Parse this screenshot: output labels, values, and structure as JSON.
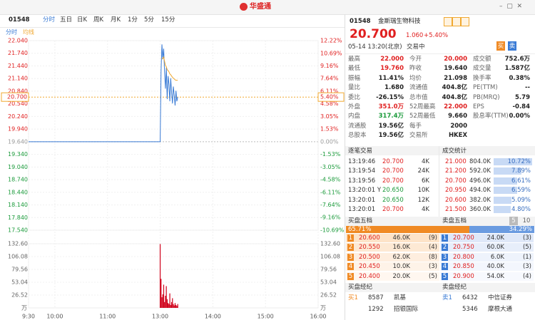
{
  "header": {
    "logo": "华盛通"
  },
  "toolbar": {
    "code": "01548",
    "tabs": [
      "分时",
      "五日",
      "日K",
      "周K",
      "月K",
      "1分",
      "5分",
      "15分"
    ]
  },
  "chart_data": {
    "type": "line",
    "x": [
      0,
      150,
      151,
      152,
      153,
      154,
      155,
      156,
      157,
      158,
      159,
      160,
      161,
      162,
      163,
      164,
      165,
      166,
      167,
      168,
      169,
      170
    ],
    "series": [
      {
        "name": "分时",
        "color": "#3a7bd5",
        "values": [
          19.64,
          19.64,
          21.3,
          21.95,
          21.6,
          21.85,
          21.3,
          20.9,
          21.4,
          20.65,
          21.2,
          21.0,
          20.6,
          21.15,
          20.8,
          20.55,
          20.95,
          20.75,
          20.5,
          20.85,
          20.6,
          20.7
        ]
      },
      {
        "name": "均线",
        "color": "#f0a830",
        "values": [
          null,
          null,
          null,
          21.6,
          21.62,
          21.65,
          21.55,
          21.45,
          21.42,
          21.35,
          21.33,
          21.3,
          21.25,
          21.23,
          21.2,
          21.17,
          21.15,
          21.13,
          21.11,
          21.1,
          21.1,
          21.1
        ]
      }
    ],
    "xlim": [
      0,
      330
    ],
    "xticks": [
      {
        "value": 0,
        "label": "9:30"
      },
      {
        "value": 30,
        "label": "10:00"
      },
      {
        "value": 90,
        "label": "11:00"
      },
      {
        "value": 150,
        "label": "13:00"
      },
      {
        "value": 210,
        "label": "14:00"
      },
      {
        "value": 270,
        "label": "15:00"
      },
      {
        "value": 330,
        "label": "16:00"
      }
    ],
    "ylim": [
      17.54,
      22.04
    ],
    "yticks": [
      {
        "value": 22.04,
        "label": "22.040"
      },
      {
        "value": 21.74,
        "label": "21.740"
      },
      {
        "value": 21.44,
        "label": "21.440"
      },
      {
        "value": 21.14,
        "label": "21.140"
      },
      {
        "value": 20.84,
        "label": "20.840"
      },
      {
        "value": 20.54,
        "label": "20.540"
      },
      {
        "value": 20.24,
        "label": "20.240"
      },
      {
        "value": 19.94,
        "label": "19.940"
      },
      {
        "value": 19.64,
        "label": "19.640"
      },
      {
        "value": 19.34,
        "label": "19.340"
      },
      {
        "value": 19.04,
        "label": "19.040"
      },
      {
        "value": 18.74,
        "label": "18.740"
      },
      {
        "value": 18.44,
        "label": "18.440"
      },
      {
        "value": 18.14,
        "label": "18.140"
      },
      {
        "value": 17.84,
        "label": "17.840"
      },
      {
        "value": 17.54,
        "label": "17.540"
      }
    ],
    "y2lim": [
      -10.69,
      12.22
    ],
    "y2ticks": [
      {
        "value": 12.22,
        "label": "12.22%"
      },
      {
        "value": 10.69,
        "label": "10.69%"
      },
      {
        "value": 9.16,
        "label": "9.16%"
      },
      {
        "value": 7.64,
        "label": "7.64%"
      },
      {
        "value": 6.11,
        "label": "6.11%"
      },
      {
        "value": 4.58,
        "label": "4.58%"
      },
      {
        "value": 3.05,
        "label": "3.05%"
      },
      {
        "value": 1.53,
        "label": "1.53%"
      },
      {
        "value": 0,
        "label": "0.00%"
      },
      {
        "value": -1.53,
        "label": "-1.53%"
      },
      {
        "value": -3.05,
        "label": "-3.05%"
      },
      {
        "value": -4.58,
        "label": "-4.58%"
      },
      {
        "value": -6.11,
        "label": "-6.11%"
      },
      {
        "value": -7.64,
        "label": "-7.64%"
      },
      {
        "value": -9.16,
        "label": "-9.16%"
      },
      {
        "value": -10.69,
        "label": "-10.69%"
      }
    ],
    "last_price": {
      "value": 20.7,
      "label": "20.700"
    },
    "last_change": {
      "value": 5.4,
      "label": "5.40%"
    },
    "grid": true,
    "volume": {
      "color": "#d0021b",
      "unit": "万",
      "x": [
        150,
        151,
        152,
        153,
        154,
        155,
        156,
        157,
        158,
        159,
        160,
        161,
        162,
        163,
        164,
        165,
        166,
        167,
        168,
        169,
        170
      ],
      "values": [
        132,
        60,
        22,
        28,
        48,
        12,
        25,
        45,
        18,
        10,
        8,
        30,
        6,
        12,
        20,
        8,
        5,
        10,
        6,
        4,
        8
      ],
      "ylim": [
        0,
        132.6
      ],
      "yticks": [
        {
          "value": 132.6,
          "label": "132.60"
        },
        {
          "value": 106.08,
          "label": "106.08"
        },
        {
          "value": 79.56,
          "label": "79.56"
        },
        {
          "value": 53.04,
          "label": "53.04"
        },
        {
          "value": 26.52,
          "label": "26.52"
        }
      ]
    }
  },
  "quote": {
    "code": "01548",
    "name": "金斯瑞生物科技",
    "price": "20.700",
    "change": "1.060",
    "change_pct": "+5.40%",
    "time": "05-14 13:20(北京)",
    "status": "交易中",
    "buy": "买",
    "sell": "卖"
  },
  "stats": [
    [
      [
        "最高",
        "22.000"
      ],
      [
        "今开",
        "20.000"
      ],
      [
        "成交额",
        "752.6万"
      ]
    ],
    [
      [
        "最低",
        "19.760"
      ],
      [
        "昨收",
        "19.640"
      ],
      [
        "成交量",
        "1.587亿"
      ]
    ],
    [
      [
        "振幅",
        "11.41%"
      ],
      [
        "均价",
        "21.098"
      ],
      [
        "换手率",
        "0.38%"
      ]
    ],
    [
      [
        "量比",
        "1.680"
      ],
      [
        "流通值",
        "404.8亿"
      ],
      [
        "PE(TTM)",
        "--"
      ]
    ],
    [
      [
        "委比",
        "-26.15%"
      ],
      [
        "总市值",
        "404.8亿"
      ],
      [
        "PB(MRQ)",
        "5.79"
      ]
    ],
    [
      [
        "外盘",
        "351.0万"
      ],
      [
        "52周最高",
        "22.000"
      ],
      [
        "EPS",
        "-0.84"
      ]
    ],
    [
      [
        "内盘",
        "317.4万"
      ],
      [
        "52周最低",
        "9.660"
      ],
      [
        "股息率(TTM)",
        "0.00%"
      ]
    ],
    [
      [
        "流通股",
        "19.56亿"
      ],
      [
        "每手",
        "2000"
      ]
    ],
    [
      [
        "总股本",
        "19.56亿"
      ],
      [
        "交易所",
        "HKEX"
      ]
    ]
  ],
  "trades": {
    "title": "逐笔交易",
    "rows": [
      [
        "13:19:46",
        "20.700",
        "4K"
      ],
      [
        "13:19:54",
        "20.700",
        "24K"
      ],
      [
        "13:19:56",
        "20.700",
        "6K"
      ],
      [
        "13:20:01 Y",
        "20.650",
        "10K"
      ],
      [
        "13:20:01",
        "20.650",
        "12K"
      ],
      [
        "13:20:01",
        "20.700",
        "4K"
      ]
    ]
  },
  "deal_stats": {
    "title": "成交统计",
    "rows": [
      {
        "price": "21.000",
        "volume": "804.0K",
        "pct": 10.72,
        "pct_label": "10.72%"
      },
      {
        "price": "21.200",
        "volume": "592.0K",
        "pct": 7.89,
        "pct_label": "7.89%"
      },
      {
        "price": "20.700",
        "volume": "496.0K",
        "pct": 6.61,
        "pct_label": "6.61%"
      },
      {
        "price": "20.950",
        "volume": "494.0K",
        "pct": 6.59,
        "pct_label": "6.59%"
      },
      {
        "price": "20.600",
        "volume": "382.0K",
        "pct": 5.09,
        "pct_label": "5.09%"
      },
      {
        "price": "21.500",
        "volume": "360.0K",
        "pct": 4.8,
        "pct_label": "4.80%"
      }
    ]
  },
  "book": {
    "bid_title": "买盘五档",
    "ask_title": "卖盘五档",
    "depth": [
      "5",
      "10"
    ],
    "bid_ratio": {
      "value": 65.71,
      "label": "65.71%"
    },
    "ask_ratio": {
      "value": 34.29,
      "label": "34.29%"
    },
    "bids": [
      [
        "1",
        "20.600",
        "46.0K",
        "(9)"
      ],
      [
        "2",
        "20.550",
        "16.0K",
        "(4)"
      ],
      [
        "3",
        "20.500",
        "62.0K",
        "(8)"
      ],
      [
        "4",
        "20.450",
        "10.0K",
        "(3)"
      ],
      [
        "5",
        "20.400",
        "20.0K",
        "(5)"
      ]
    ],
    "asks": [
      [
        "1",
        "20.700",
        "24.0K",
        "(3)"
      ],
      [
        "2",
        "20.750",
        "60.0K",
        "(5)"
      ],
      [
        "3",
        "20.800",
        "6.0K",
        "(1)"
      ],
      [
        "4",
        "20.850",
        "40.0K",
        "(3)"
      ],
      [
        "5",
        "20.900",
        "54.0K",
        "(4)"
      ]
    ]
  },
  "brokers": {
    "buy_title": "买盘经纪",
    "sell_title": "卖盘经纪",
    "buy": [
      {
        "level": "买1",
        "id": "8587",
        "name": "凯基"
      },
      {
        "id": "1292",
        "name": "招银国际"
      }
    ],
    "sell": [
      {
        "level": "卖1",
        "id": "6432",
        "name": "中信证券"
      },
      {
        "id": "5346",
        "name": "摩根大通"
      }
    ]
  }
}
